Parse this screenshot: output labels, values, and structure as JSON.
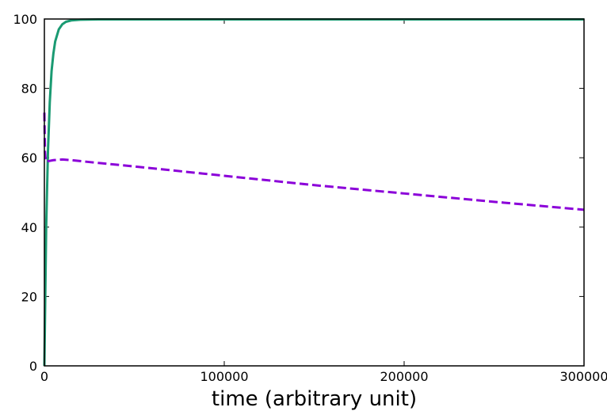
{
  "chart_data": {
    "type": "line",
    "title": "",
    "xlabel": "time (arbitrary unit)",
    "ylabel": "",
    "xlim": [
      0,
      300000
    ],
    "ylim": [
      0,
      100
    ],
    "xticks": [
      0,
      100000,
      200000,
      300000
    ],
    "xtick_labels": [
      "0",
      "100000",
      "200000",
      "300000"
    ],
    "yticks": [
      0,
      20,
      40,
      60,
      80,
      100
    ],
    "ytick_labels": [
      "0",
      "20",
      "40",
      "60",
      "80",
      "100"
    ],
    "grid": false,
    "legend": "none",
    "series": [
      {
        "style": "solid",
        "color": "#1a9a72",
        "x": [
          0,
          1000,
          2000,
          3000,
          4000,
          5000,
          6000,
          8000,
          10000,
          12000,
          15000,
          20000,
          30000,
          50000,
          100000,
          150000,
          200000,
          250000,
          300000
        ],
        "y": [
          0,
          40,
          62,
          76,
          85,
          90,
          93.5,
          97,
          98.5,
          99.2,
          99.6,
          99.8,
          99.9,
          99.9,
          99.9,
          99.9,
          99.9,
          99.9,
          99.9
        ]
      },
      {
        "style": "dashed",
        "color": "#8b00d9",
        "x": [
          0,
          300,
          600,
          1000,
          2000,
          5000,
          10000,
          15000,
          30000,
          50000,
          100000,
          150000,
          200000,
          250000,
          300000
        ],
        "y": [
          73,
          62,
          59.5,
          58.8,
          59.0,
          59.3,
          59.5,
          59.3,
          58.5,
          57.5,
          54.8,
          52.1,
          49.7,
          47.3,
          45.0
        ]
      }
    ]
  }
}
